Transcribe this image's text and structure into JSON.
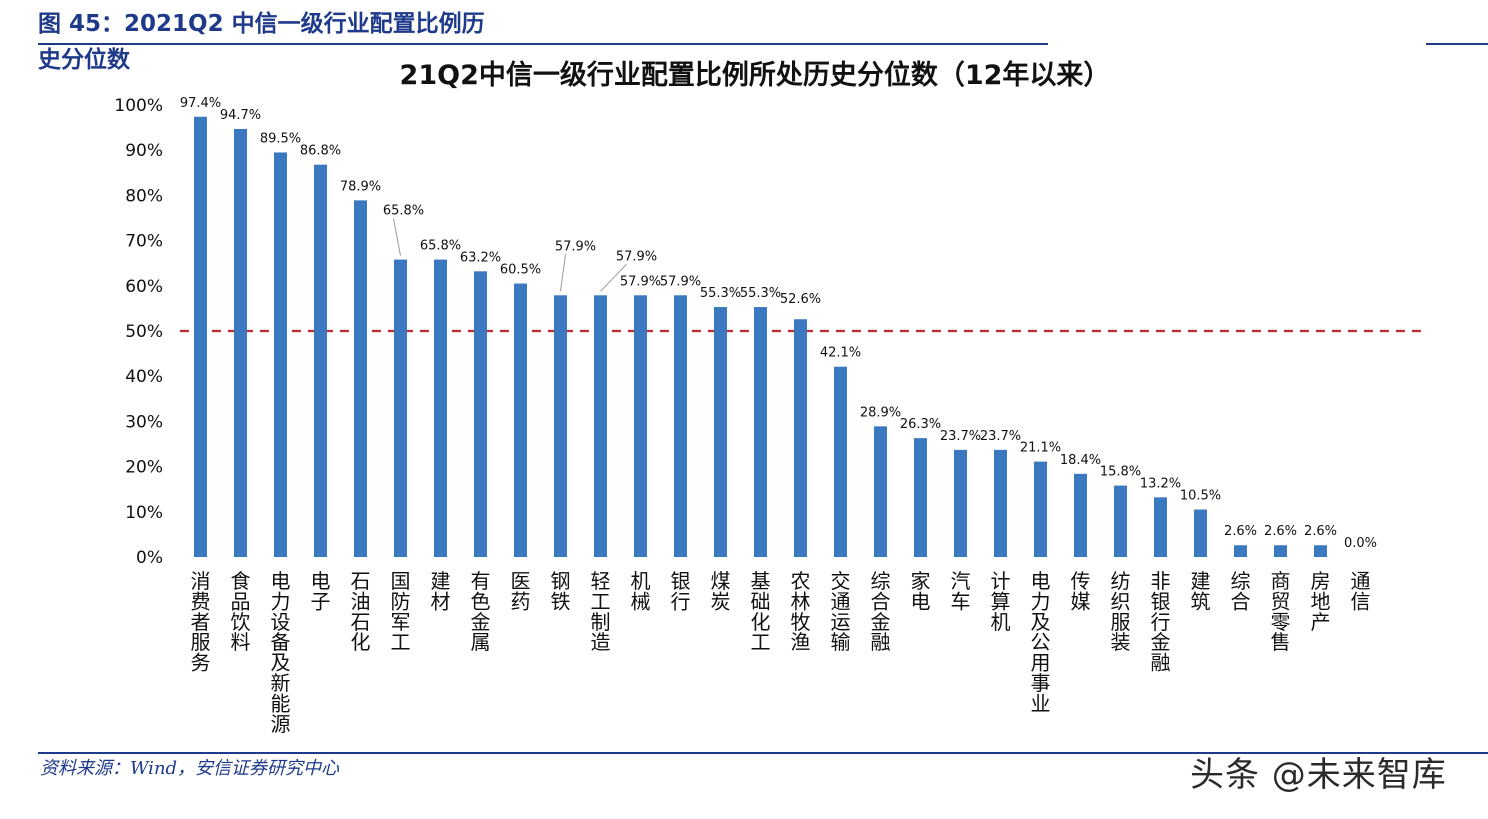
{
  "header": {
    "figure_title": "图 45：2021Q2 中信一级行业配置比例历史分位数",
    "source_note": "资料来源：Wind，安信证券研究中心",
    "watermark": "头条 @未来智库"
  },
  "colors": {
    "bar": "#3a78bf",
    "reference_line": "#c0282d",
    "header_blue": "#1f3a8a"
  },
  "chart_data": {
    "type": "bar",
    "title": "21Q2中信一级行业配置比例所处历史分位数（12年以来）",
    "xlabel": "",
    "ylabel": "",
    "ylim": [
      0,
      100
    ],
    "yticks": [
      "0%",
      "10%",
      "20%",
      "30%",
      "40%",
      "50%",
      "60%",
      "70%",
      "80%",
      "90%",
      "100%"
    ],
    "reference_line": {
      "value": 50,
      "style": "dashed"
    },
    "grid": false,
    "categories": [
      "消费者服务",
      "食品饮料",
      "电力设备及新能源",
      "电子",
      "石油石化",
      "国防军工",
      "建材",
      "有色金属",
      "医药",
      "钢铁",
      "轻工制造",
      "机械",
      "银行",
      "煤炭",
      "基础化工",
      "农林牧渔",
      "交通运输",
      "综合金融",
      "家电",
      "汽车",
      "计算机",
      "电力及公用事业",
      "传媒",
      "纺织服装",
      "非银行金融",
      "建筑",
      "综合",
      "商贸零售",
      "房地产",
      "通信"
    ],
    "values": [
      97.4,
      94.7,
      89.5,
      86.8,
      78.9,
      65.8,
      65.8,
      63.2,
      60.5,
      57.9,
      57.9,
      57.9,
      57.9,
      55.3,
      55.3,
      52.6,
      42.1,
      28.9,
      26.3,
      23.7,
      23.7,
      21.1,
      18.4,
      15.8,
      13.2,
      10.5,
      2.6,
      2.6,
      2.6,
      0.0
    ],
    "data_labels": [
      "97.4%",
      "94.7%",
      "89.5%",
      "86.8%",
      "78.9%",
      "65.8%",
      "65.8%",
      "63.2%",
      "60.5%",
      "57.9%",
      "57.9%",
      "57.9%",
      "57.9%",
      "55.3%",
      "55.3%",
      "52.6%",
      "42.1%",
      "28.9%",
      "26.3%",
      "23.7%",
      "23.7%",
      "21.1%",
      "18.4%",
      "15.8%",
      "13.2%",
      "10.5%",
      "2.6%",
      "2.6%",
      "2.6%",
      "0.0%"
    ]
  }
}
